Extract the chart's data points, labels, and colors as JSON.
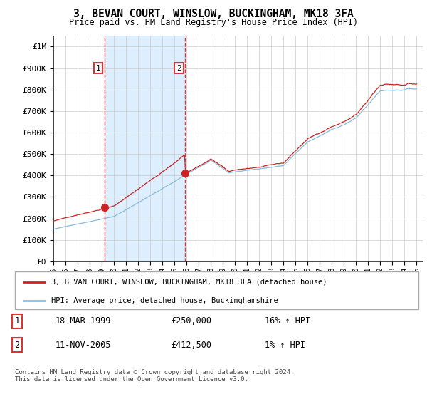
{
  "title1": "3, BEVAN COURT, WINSLOW, BUCKINGHAM, MK18 3FA",
  "title2": "Price paid vs. HM Land Registry's House Price Index (HPI)",
  "ylim_bottom": 0,
  "ylim_top": 1050000,
  "yticks": [
    0,
    100000,
    200000,
    300000,
    400000,
    500000,
    600000,
    700000,
    800000,
    900000,
    1000000
  ],
  "ytick_labels": [
    "£0",
    "£100K",
    "£200K",
    "£300K",
    "£400K",
    "£500K",
    "£600K",
    "£700K",
    "£800K",
    "£900K",
    "£1M"
  ],
  "sale1_date": 1999.21,
  "sale1_price": 250000,
  "sale2_date": 2005.87,
  "sale2_price": 412500,
  "sale1_label": "1",
  "sale2_label": "2",
  "legend_line1": "3, BEVAN COURT, WINSLOW, BUCKINGHAM, MK18 3FA (detached house)",
  "legend_line2": "HPI: Average price, detached house, Buckinghamshire",
  "table_row1": [
    "1",
    "18-MAR-1999",
    "£250,000",
    "16% ↑ HPI"
  ],
  "table_row2": [
    "2",
    "11-NOV-2005",
    "£412,500",
    "1% ↑ HPI"
  ],
  "footnote": "Contains HM Land Registry data © Crown copyright and database right 2024.\nThis data is licensed under the Open Government Licence v3.0.",
  "line_color_red": "#cc2222",
  "line_color_blue": "#88bbdd",
  "vline_color": "#dd3333",
  "grid_color": "#cccccc",
  "plot_bg": "#ffffff",
  "shade_color": "#ddeeff",
  "xmin": 1995.0,
  "xmax": 2025.5
}
